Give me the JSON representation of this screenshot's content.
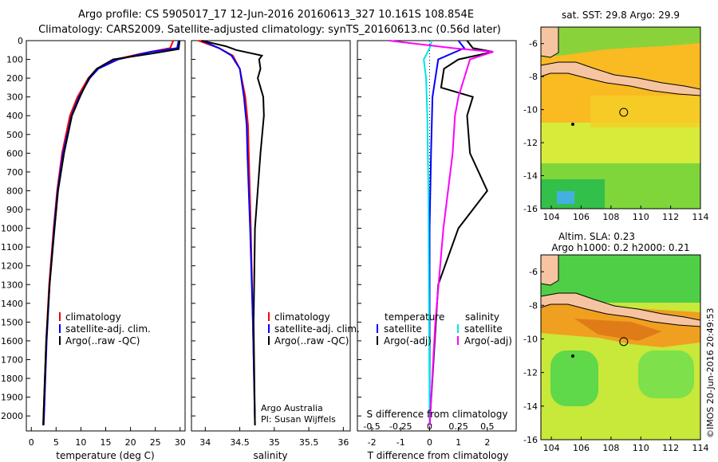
{
  "header": {
    "title_line1": "Argo profile: CS 5905017_17 12-Jun-2016 20160613_327 10.161S 108.854E",
    "title_line2": "Climatology: CARS2009. Satellite-adjusted climatology: synTS_20160613.nc (0.56d later)"
  },
  "colors": {
    "climatology": "#ff0000",
    "satellite": "#0000ff",
    "argo": "#000000",
    "cyan": "#00e5e5",
    "magenta": "#ff00ff",
    "land": "#f6c4a0"
  },
  "chart_data": [
    {
      "name": "temperature",
      "type": "line",
      "xlabel": "temperature (deg C)",
      "ylabel": "",
      "xlim": [
        -1,
        31
      ],
      "ylim": [
        2080,
        0
      ],
      "xticks": [
        "0",
        "5",
        "10",
        "15",
        "20",
        "25",
        "30"
      ],
      "yticks": [
        "0",
        "100",
        "200",
        "300",
        "400",
        "500",
        "600",
        "700",
        "800",
        "900",
        "1000",
        "1100",
        "1200",
        "1300",
        "1400",
        "1500",
        "1600",
        "1700",
        "1800",
        "1900",
        "2000"
      ],
      "legend": [
        "climatology",
        "satellite-adj. clim.",
        "Argo(..raw -QC)"
      ],
      "series": [
        {
          "name": "climatology",
          "depth": [
            0,
            40,
            70,
            100,
            150,
            200,
            300,
            400,
            600,
            800,
            1000,
            1300,
            1600,
            2050
          ],
          "values": [
            28.6,
            28.0,
            22,
            17,
            13.2,
            11.5,
            9.3,
            7.8,
            6.2,
            5.2,
            4.5,
            3.6,
            3.0,
            2.4
          ]
        },
        {
          "name": "satellite-adj. clim.",
          "depth": [
            0,
            40,
            60,
            100,
            150,
            200,
            300,
            400,
            600,
            800,
            1000,
            1300,
            1600,
            2050
          ],
          "values": [
            29.7,
            29.4,
            24,
            17.5,
            13.5,
            11.8,
            9.6,
            8.1,
            6.4,
            5.3,
            4.6,
            3.7,
            3.1,
            2.5
          ]
        },
        {
          "name": "Argo",
          "depth": [
            0,
            45,
            70,
            100,
            150,
            200,
            300,
            400,
            600,
            800,
            1000,
            1300,
            1600,
            2050
          ],
          "values": [
            29.9,
            29.7,
            24,
            16.5,
            13.2,
            11.6,
            9.8,
            8.2,
            6.6,
            5.4,
            4.7,
            3.7,
            3.0,
            2.4
          ]
        }
      ]
    },
    {
      "name": "salinity",
      "type": "line",
      "xlabel": "salinity",
      "xlim": [
        33.8,
        36.1
      ],
      "ylim": [
        2080,
        0
      ],
      "xticks": [
        "34",
        "34.5",
        "35",
        "35.5",
        "36"
      ],
      "legend": [
        "climatology",
        "satellite-adj. clim.",
        "Argo(..raw -QC)"
      ],
      "annotation": [
        "Argo Australia",
        "PI: Susan Wijffels"
      ],
      "series": [
        {
          "name": "climatology",
          "depth": [
            0,
            40,
            80,
            150,
            300,
            450,
            600,
            1000,
            1500,
            2050
          ],
          "values": [
            33.9,
            34.2,
            34.4,
            34.5,
            34.58,
            34.62,
            34.63,
            34.66,
            34.69,
            34.72
          ]
        },
        {
          "name": "satellite-adj. clim.",
          "depth": [
            0,
            40,
            80,
            150,
            300,
            450,
            600,
            1000,
            1500,
            2050
          ],
          "values": [
            33.95,
            34.2,
            34.38,
            34.5,
            34.56,
            34.6,
            34.61,
            34.65,
            34.69,
            34.72
          ]
        },
        {
          "name": "Argo",
          "depth": [
            0,
            30,
            50,
            80,
            100,
            150,
            200,
            300,
            400,
            600,
            1000,
            1500,
            2050
          ],
          "values": [
            33.95,
            34.3,
            34.45,
            34.82,
            34.78,
            34.8,
            34.76,
            34.84,
            34.85,
            34.8,
            34.72,
            34.7,
            34.72
          ]
        }
      ]
    },
    {
      "name": "difference",
      "type": "line",
      "xlabel": "T difference from climatology",
      "xlabel_top": "S difference from climatology",
      "xlim": [
        -2.5,
        3.0
      ],
      "ylim": [
        2080,
        0
      ],
      "xticks": [
        "-2",
        "-1",
        "0",
        "1",
        "2"
      ],
      "xticks_s": [
        "-0.5",
        "-0.25",
        "0",
        "0.25",
        "0.5"
      ],
      "legend_left_title": "temperature",
      "legend_right_title": "salinity",
      "legend_left": [
        "satellite",
        "Argo(-adj)"
      ],
      "legend_right": [
        "satellite",
        "Argo(-adj)"
      ],
      "series": [
        {
          "name": "T satellite",
          "depth": [
            0,
            40,
            100,
            200,
            300,
            600,
            1000,
            2050
          ],
          "values": [
            1.0,
            1.2,
            0.3,
            0.2,
            0.1,
            0.05,
            0.0,
            0.0
          ]
        },
        {
          "name": "T Argo(-adj)",
          "depth": [
            0,
            40,
            60,
            100,
            150,
            250,
            300,
            400,
            600,
            800,
            1000,
            1300,
            2050
          ],
          "values": [
            1.3,
            1.5,
            2.2,
            1.0,
            0.5,
            0.4,
            1.5,
            1.3,
            1.4,
            2.0,
            1.0,
            0.3,
            0.0
          ]
        },
        {
          "name": "S satellite",
          "depth": [
            0,
            40,
            100,
            200,
            400,
            800,
            2050
          ],
          "values": [
            0.02,
            0.0,
            -0.05,
            -0.03,
            -0.02,
            -0.01,
            0.0
          ]
        },
        {
          "name": "S Argo(-adj)",
          "depth": [
            0,
            40,
            60,
            100,
            200,
            300,
            400,
            600,
            1000,
            1500,
            2050
          ],
          "values": [
            -0.35,
            0.2,
            0.55,
            0.35,
            0.3,
            0.25,
            0.22,
            0.2,
            0.12,
            0.05,
            0.0
          ]
        }
      ]
    }
  ],
  "maps": {
    "sst": {
      "title": "sat. SST: 29.8 Argo: 29.9",
      "xticks": [
        "104",
        "106",
        "108",
        "110",
        "112",
        "114"
      ],
      "yticks": [
        "-6",
        "-8",
        "-10",
        "-12",
        "-14",
        "-16"
      ],
      "float_lon": 108.854,
      "float_lat": -10.161
    },
    "sla": {
      "title_line1": "Altim. SLA: 0.23",
      "title_line2": "Argo h1000: 0.2 h2000: 0.21",
      "xticks": [
        "104",
        "106",
        "108",
        "110",
        "112",
        "114"
      ],
      "yticks": [
        "-6",
        "-8",
        "-10",
        "-12",
        "-14",
        "-16"
      ],
      "float_lon": 108.854,
      "float_lat": -10.161
    }
  },
  "credit": "©IMOS 20-Jun-2016 20:49:53"
}
